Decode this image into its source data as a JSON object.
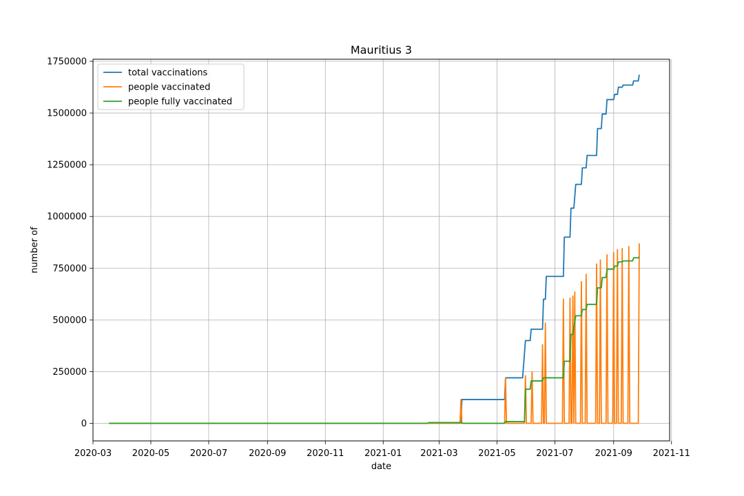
{
  "chart_data": {
    "type": "line",
    "title": "Mauritius 3",
    "xlabel": "date",
    "ylabel": "number of",
    "x_ticks": [
      "2020-03",
      "2020-05",
      "2020-07",
      "2020-09",
      "2020-11",
      "2021-01",
      "2021-03",
      "2021-05",
      "2021-07",
      "2021-09",
      "2021-11"
    ],
    "y_ticks": [
      "0",
      "250000",
      "500000",
      "750000",
      "1000000",
      "1250000",
      "1500000",
      "1750000"
    ],
    "xlim": [
      "2020-03-01",
      "2021-10-30"
    ],
    "ylim": [
      -85000,
      1760000
    ],
    "grid": true,
    "legend_position": "upper-left",
    "series": [
      {
        "name": "total vaccinations",
        "color": "#1f77b4",
        "points": [
          [
            "2020-03-18",
            0
          ],
          [
            "2021-02-17",
            0
          ],
          [
            "2021-02-18",
            3000
          ],
          [
            "2021-03-24",
            3000
          ],
          [
            "2021-03-25",
            115000
          ],
          [
            "2021-05-09",
            115000
          ],
          [
            "2021-05-10",
            220000
          ],
          [
            "2021-05-28",
            220000
          ],
          [
            "2021-05-31",
            400000
          ],
          [
            "2021-06-05",
            400000
          ],
          [
            "2021-06-06",
            455000
          ],
          [
            "2021-06-18",
            455000
          ],
          [
            "2021-06-19",
            600000
          ],
          [
            "2021-06-21",
            600000
          ],
          [
            "2021-06-22",
            710000
          ],
          [
            "2021-07-10",
            710000
          ],
          [
            "2021-07-11",
            900000
          ],
          [
            "2021-07-17",
            900000
          ],
          [
            "2021-07-18",
            1040000
          ],
          [
            "2021-07-21",
            1040000
          ],
          [
            "2021-07-22",
            1095000
          ],
          [
            "2021-07-23",
            1155000
          ],
          [
            "2021-07-29",
            1155000
          ],
          [
            "2021-07-30",
            1235000
          ],
          [
            "2021-08-03",
            1235000
          ],
          [
            "2021-08-04",
            1295000
          ],
          [
            "2021-08-14",
            1295000
          ],
          [
            "2021-08-15",
            1425000
          ],
          [
            "2021-08-19",
            1425000
          ],
          [
            "2021-08-20",
            1495000
          ],
          [
            "2021-08-24",
            1495000
          ],
          [
            "2021-08-25",
            1565000
          ],
          [
            "2021-09-01",
            1565000
          ],
          [
            "2021-09-02",
            1590000
          ],
          [
            "2021-09-05",
            1590000
          ],
          [
            "2021-09-06",
            1625000
          ],
          [
            "2021-09-10",
            1625000
          ],
          [
            "2021-09-11",
            1635000
          ],
          [
            "2021-09-21",
            1635000
          ],
          [
            "2021-09-22",
            1655000
          ],
          [
            "2021-09-27",
            1655000
          ],
          [
            "2021-09-28",
            1685000
          ]
        ]
      },
      {
        "name": "people vaccinated",
        "color": "#ff7f0e",
        "points": [
          [
            "2020-03-18",
            0
          ],
          [
            "2021-03-23",
            0
          ],
          [
            "2021-03-24",
            115000
          ],
          [
            "2021-03-25",
            0
          ],
          [
            "2021-05-09",
            0
          ],
          [
            "2021-05-10",
            220000
          ],
          [
            "2021-05-11",
            0
          ],
          [
            "2021-05-30",
            0
          ],
          [
            "2021-05-31",
            230000
          ],
          [
            "2021-06-01",
            0
          ],
          [
            "2021-06-06",
            0
          ],
          [
            "2021-06-07",
            250000
          ],
          [
            "2021-06-08",
            0
          ],
          [
            "2021-06-17",
            0
          ],
          [
            "2021-06-18",
            380000
          ],
          [
            "2021-06-19",
            0
          ],
          [
            "2021-06-20",
            0
          ],
          [
            "2021-06-21",
            485000
          ],
          [
            "2021-06-22",
            0
          ],
          [
            "2021-07-09",
            0
          ],
          [
            "2021-07-10",
            600000
          ],
          [
            "2021-07-11",
            0
          ],
          [
            "2021-07-16",
            0
          ],
          [
            "2021-07-17",
            605000
          ],
          [
            "2021-07-18",
            0
          ],
          [
            "2021-07-19",
            0
          ],
          [
            "2021-07-20",
            615000
          ],
          [
            "2021-07-21",
            0
          ],
          [
            "2021-07-21",
            0
          ],
          [
            "2021-07-22",
            635000
          ],
          [
            "2021-07-23",
            0
          ],
          [
            "2021-07-28",
            0
          ],
          [
            "2021-07-29",
            685000
          ],
          [
            "2021-07-30",
            0
          ],
          [
            "2021-08-02",
            0
          ],
          [
            "2021-08-03",
            720000
          ],
          [
            "2021-08-04",
            0
          ],
          [
            "2021-08-13",
            0
          ],
          [
            "2021-08-14",
            770000
          ],
          [
            "2021-08-15",
            0
          ],
          [
            "2021-08-17",
            0
          ],
          [
            "2021-08-18",
            790000
          ],
          [
            "2021-08-19",
            0
          ],
          [
            "2021-08-24",
            0
          ],
          [
            "2021-08-25",
            815000
          ],
          [
            "2021-08-26",
            0
          ],
          [
            "2021-08-31",
            0
          ],
          [
            "2021-09-01",
            825000
          ],
          [
            "2021-09-02",
            0
          ],
          [
            "2021-09-04",
            0
          ],
          [
            "2021-09-05",
            840000
          ],
          [
            "2021-09-06",
            0
          ],
          [
            "2021-09-09",
            0
          ],
          [
            "2021-09-10",
            845000
          ],
          [
            "2021-09-11",
            0
          ],
          [
            "2021-09-16",
            0
          ],
          [
            "2021-09-17",
            855000
          ],
          [
            "2021-09-18",
            0
          ],
          [
            "2021-09-27",
            0
          ],
          [
            "2021-09-28",
            870000
          ]
        ]
      },
      {
        "name": "people fully vaccinated",
        "color": "#2ca02c",
        "points": [
          [
            "2020-03-18",
            0
          ],
          [
            "2021-02-17",
            0
          ],
          [
            "2021-02-18",
            3000
          ],
          [
            "2021-03-24",
            3000
          ],
          [
            "2021-03-25",
            0
          ],
          [
            "2021-05-09",
            0
          ],
          [
            "2021-05-10",
            8000
          ],
          [
            "2021-05-30",
            8000
          ],
          [
            "2021-05-31",
            165000
          ],
          [
            "2021-06-05",
            165000
          ],
          [
            "2021-06-06",
            205000
          ],
          [
            "2021-06-18",
            205000
          ],
          [
            "2021-06-19",
            220000
          ],
          [
            "2021-07-10",
            220000
          ],
          [
            "2021-07-11",
            300000
          ],
          [
            "2021-07-17",
            300000
          ],
          [
            "2021-07-18",
            430000
          ],
          [
            "2021-07-20",
            430000
          ],
          [
            "2021-07-22",
            490000
          ],
          [
            "2021-07-23",
            520000
          ],
          [
            "2021-07-29",
            520000
          ],
          [
            "2021-07-30",
            550000
          ],
          [
            "2021-08-03",
            550000
          ],
          [
            "2021-08-04",
            575000
          ],
          [
            "2021-08-14",
            575000
          ],
          [
            "2021-08-15",
            655000
          ],
          [
            "2021-08-19",
            655000
          ],
          [
            "2021-08-20",
            705000
          ],
          [
            "2021-08-24",
            705000
          ],
          [
            "2021-08-25",
            745000
          ],
          [
            "2021-09-01",
            745000
          ],
          [
            "2021-09-02",
            760000
          ],
          [
            "2021-09-05",
            760000
          ],
          [
            "2021-09-06",
            780000
          ],
          [
            "2021-09-10",
            780000
          ],
          [
            "2021-09-11",
            785000
          ],
          [
            "2021-09-21",
            785000
          ],
          [
            "2021-09-22",
            800000
          ],
          [
            "2021-09-27",
            800000
          ],
          [
            "2021-09-28",
            805000
          ]
        ]
      }
    ]
  }
}
